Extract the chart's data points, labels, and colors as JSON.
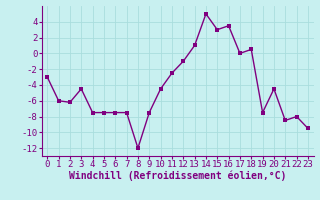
{
  "x": [
    0,
    1,
    2,
    3,
    4,
    5,
    6,
    7,
    8,
    9,
    10,
    11,
    12,
    13,
    14,
    15,
    16,
    17,
    18,
    19,
    20,
    21,
    22,
    23
  ],
  "y": [
    -3.0,
    -6.0,
    -6.2,
    -4.5,
    -7.5,
    -7.5,
    -7.5,
    -7.5,
    -12.0,
    -7.5,
    -4.5,
    -2.5,
    -1.0,
    1.0,
    5.0,
    3.0,
    3.5,
    0.0,
    0.5,
    -7.5,
    -4.5,
    -8.5,
    -8.0,
    -9.5
  ],
  "line_color": "#800080",
  "marker_color": "#800080",
  "bg_color": "#c8f0f0",
  "grid_color": "#aadddd",
  "xlabel": "Windchill (Refroidissement éolien,°C)",
  "tick_fontsize": 6.5,
  "xlabel_fontsize": 7,
  "ylim": [
    -13,
    6
  ],
  "yticks": [
    -12,
    -10,
    -8,
    -6,
    -4,
    -2,
    0,
    2,
    4
  ],
  "xticks": [
    0,
    1,
    2,
    3,
    4,
    5,
    6,
    7,
    8,
    9,
    10,
    11,
    12,
    13,
    14,
    15,
    16,
    17,
    18,
    19,
    20,
    21,
    22,
    23
  ],
  "linewidth": 1.0,
  "markersize": 2.5
}
